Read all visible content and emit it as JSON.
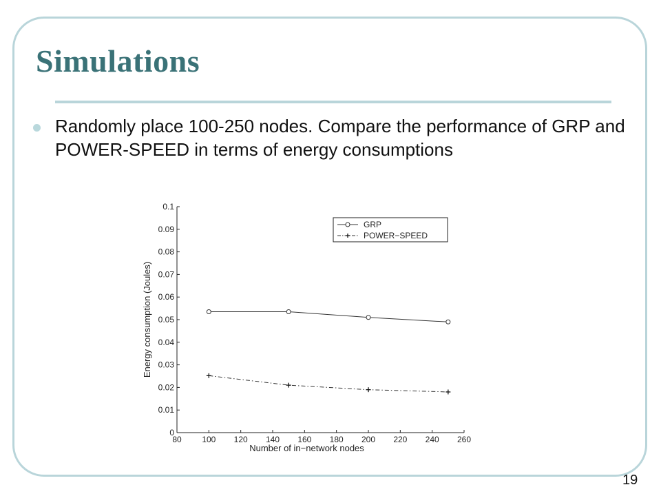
{
  "slide": {
    "title": "Simulations",
    "bullet": "Randomly place 100-250 nodes.  Compare the performance of GRP and POWER-SPEED in terms of energy consumptions",
    "slide_number": "19"
  },
  "colors": {
    "title": "#3a7277",
    "frame": "#b9d5da",
    "bullet": "#b9d8dc"
  },
  "chart_data": {
    "type": "line",
    "title": "",
    "xlabel": "Number of in−network nodes",
    "ylabel": "Energy consumption (Joules)",
    "xlim": [
      80,
      260
    ],
    "ylim": [
      0,
      0.1
    ],
    "xticks": [
      "80",
      "100",
      "120",
      "140",
      "160",
      "180",
      "200",
      "220",
      "240",
      "260"
    ],
    "yticks": [
      "0",
      "0.01",
      "0.02",
      "0.03",
      "0.04",
      "0.05",
      "0.06",
      "0.07",
      "0.08",
      "0.09",
      "0.1"
    ],
    "x": [
      100,
      150,
      200,
      250
    ],
    "grid": false,
    "legend_position": "top-right",
    "series": [
      {
        "name": "GRP",
        "values": [
          0.0535,
          0.0535,
          0.051,
          0.049
        ],
        "marker": "circle",
        "style": "solid"
      },
      {
        "name": "POWER−SPEED",
        "values": [
          0.0252,
          0.021,
          0.019,
          0.018
        ],
        "marker": "plus",
        "style": "dashdot"
      }
    ]
  }
}
